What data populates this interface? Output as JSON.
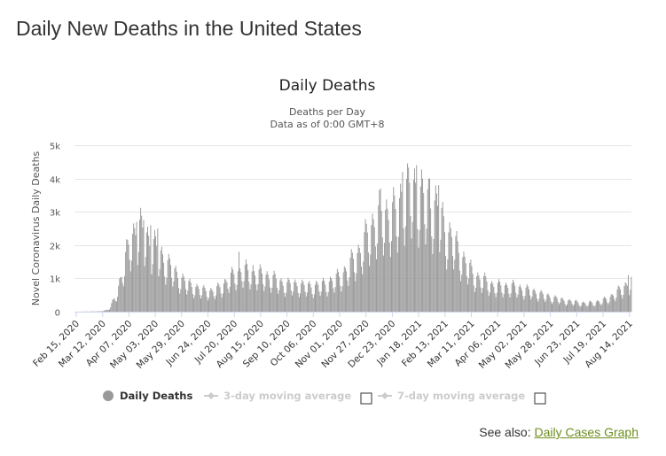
{
  "page": {
    "heading": "Daily New Deaths in the United States",
    "see_also_label": "See also:",
    "see_also_link": "Daily Cases Graph",
    "link_color": "#6c8e1e"
  },
  "legend": {
    "items": [
      {
        "label": "Daily Deaths",
        "enabled": true,
        "icon": "circle-marker-icon"
      },
      {
        "label": "3-day moving average",
        "enabled": false,
        "icon": "line-marker-icon",
        "checkbox": false
      },
      {
        "label": "7-day moving average",
        "enabled": false,
        "icon": "line-marker-icon",
        "checkbox": false
      }
    ]
  },
  "chart_data": {
    "type": "bar",
    "title": "Daily Deaths",
    "subtitle": [
      "Deaths per Day",
      "Data as of 0:00 GMT+8"
    ],
    "ylabel": "Novel Coronavirus Daily Deaths",
    "xlabel": "",
    "ylim": [
      0,
      5000
    ],
    "yticks": [
      "0",
      "1k",
      "2k",
      "3k",
      "4k",
      "5k"
    ],
    "ytick_values": [
      0,
      1000,
      2000,
      3000,
      4000,
      5000
    ],
    "grid": true,
    "bar_color": "#999999",
    "x_start": "2020-02-15",
    "x_end": "2021-08-23",
    "xtick_labels": [
      "Feb 15, 2020",
      "Mar 12, 2020",
      "Apr 07, 2020",
      "May 03, 2020",
      "May 29, 2020",
      "Jun 24, 2020",
      "Jul 20, 2020",
      "Aug 15, 2020",
      "Sep 10, 2020",
      "Oct 06, 2020",
      "Nov 01, 2020",
      "Nov 27, 2020",
      "Dec 23, 2020",
      "Jan 18, 2021",
      "Feb 13, 2021",
      "Mar 11, 2021",
      "Apr 06, 2021",
      "May 02, 2021",
      "May 28, 2021",
      "Jun 23, 2021",
      "Jul 19, 2021",
      "Aug 14, 2021"
    ],
    "trend_points": [
      [
        "2020-02-15",
        0
      ],
      [
        "2020-03-12",
        10
      ],
      [
        "2020-03-20",
        60
      ],
      [
        "2020-03-27",
        400
      ],
      [
        "2020-04-03",
        1100
      ],
      [
        "2020-04-10",
        1900
      ],
      [
        "2020-04-17",
        2300
      ],
      [
        "2020-04-24",
        2200
      ],
      [
        "2020-05-01",
        1900
      ],
      [
        "2020-05-08",
        1700
      ],
      [
        "2020-05-15",
        1400
      ],
      [
        "2020-05-22",
        1200
      ],
      [
        "2020-05-29",
        950
      ],
      [
        "2020-06-05",
        800
      ],
      [
        "2020-06-12",
        700
      ],
      [
        "2020-06-19",
        600
      ],
      [
        "2020-06-26",
        580
      ],
      [
        "2020-07-03",
        550
      ],
      [
        "2020-07-10",
        700
      ],
      [
        "2020-07-17",
        850
      ],
      [
        "2020-07-24",
        1050
      ],
      [
        "2020-07-31",
        1150
      ],
      [
        "2020-08-07",
        1100
      ],
      [
        "2020-08-14",
        1050
      ],
      [
        "2020-08-21",
        1000
      ],
      [
        "2020-08-28",
        950
      ],
      [
        "2020-09-04",
        850
      ],
      [
        "2020-09-11",
        750
      ],
      [
        "2020-09-18",
        750
      ],
      [
        "2020-09-25",
        750
      ],
      [
        "2020-10-02",
        700
      ],
      [
        "2020-10-09",
        700
      ],
      [
        "2020-10-16",
        720
      ],
      [
        "2020-10-23",
        780
      ],
      [
        "2020-10-30",
        850
      ],
      [
        "2020-11-06",
        1000
      ],
      [
        "2020-11-13",
        1150
      ],
      [
        "2020-11-20",
        1500
      ],
      [
        "2020-11-27",
        1700
      ],
      [
        "2020-12-04",
        2200
      ],
      [
        "2020-12-11",
        2500
      ],
      [
        "2020-12-18",
        2700
      ],
      [
        "2020-12-25",
        2700
      ],
      [
        "2021-01-01",
        2700
      ],
      [
        "2021-01-08",
        3300
      ],
      [
        "2021-01-15",
        3400
      ],
      [
        "2021-01-22",
        3300
      ],
      [
        "2021-01-29",
        3100
      ],
      [
        "2021-02-05",
        3000
      ],
      [
        "2021-02-12",
        2800
      ],
      [
        "2021-02-19",
        2200
      ],
      [
        "2021-02-26",
        2000
      ],
      [
        "2021-03-05",
        1600
      ],
      [
        "2021-03-12",
        1300
      ],
      [
        "2021-03-19",
        1000
      ],
      [
        "2021-03-26",
        900
      ],
      [
        "2021-04-02",
        800
      ],
      [
        "2021-04-09",
        700
      ],
      [
        "2021-04-16",
        700
      ],
      [
        "2021-04-23",
        700
      ],
      [
        "2021-04-30",
        680
      ],
      [
        "2021-05-07",
        620
      ],
      [
        "2021-05-14",
        580
      ],
      [
        "2021-05-21",
        520
      ],
      [
        "2021-05-28",
        450
      ],
      [
        "2021-06-04",
        400
      ],
      [
        "2021-06-11",
        350
      ],
      [
        "2021-06-18",
        300
      ],
      [
        "2021-06-25",
        280
      ],
      [
        "2021-07-02",
        250
      ],
      [
        "2021-07-09",
        230
      ],
      [
        "2021-07-16",
        250
      ],
      [
        "2021-07-23",
        290
      ],
      [
        "2021-07-30",
        350
      ],
      [
        "2021-08-06",
        480
      ],
      [
        "2021-08-13",
        620
      ],
      [
        "2021-08-20",
        780
      ],
      [
        "2021-08-23",
        850
      ]
    ],
    "weekly_peaks": [
      [
        "2020-04-17",
        2700
      ],
      [
        "2020-04-24",
        2750
      ],
      [
        "2020-05-01",
        2600
      ],
      [
        "2020-05-08",
        2500
      ],
      [
        "2020-07-28",
        1800
      ],
      [
        "2020-08-11",
        1400
      ],
      [
        "2020-12-16",
        3700
      ],
      [
        "2021-01-07",
        4200
      ],
      [
        "2021-01-12",
        4450
      ],
      [
        "2021-01-21",
        4400
      ],
      [
        "2021-02-03",
        4000
      ],
      [
        "2021-02-12",
        3800
      ],
      [
        "2021-08-20",
        1100
      ]
    ]
  }
}
